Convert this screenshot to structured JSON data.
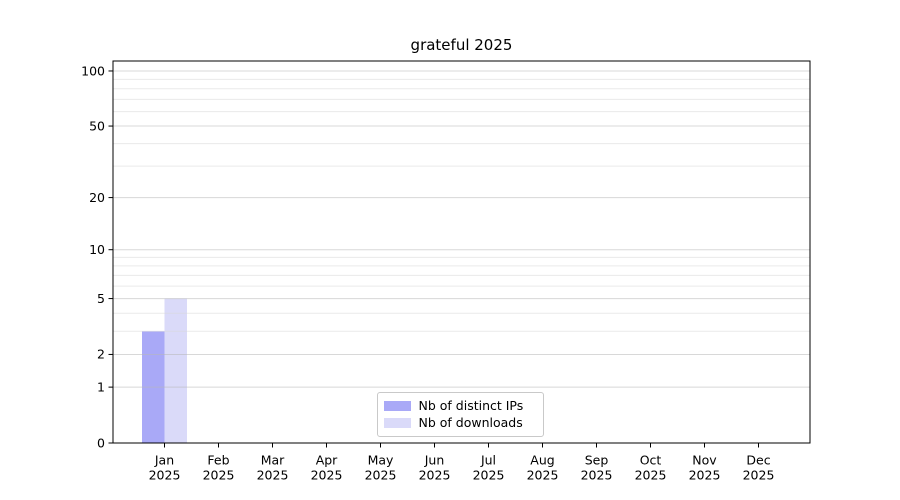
{
  "chart_data": {
    "type": "bar",
    "title": "grateful 2025",
    "months": [
      "Jan",
      "Feb",
      "Mar",
      "Apr",
      "May",
      "Jun",
      "Jul",
      "Aug",
      "Sep",
      "Oct",
      "Nov",
      "Dec"
    ],
    "year": "2025",
    "categories": [
      "Jan 2025",
      "Feb 2025",
      "Mar 2025",
      "Apr 2025",
      "May 2025",
      "Jun 2025",
      "Jul 2025",
      "Aug 2025",
      "Sep 2025",
      "Oct 2025",
      "Nov 2025",
      "Dec 2025"
    ],
    "series": [
      {
        "name": "Nb of distinct IPs",
        "color": "#a9a9f7",
        "values": [
          3,
          0,
          0,
          0,
          0,
          0,
          0,
          0,
          0,
          0,
          0,
          0
        ]
      },
      {
        "name": "Nb of downloads",
        "color": "#dadaf9",
        "values": [
          5,
          0,
          0,
          0,
          0,
          0,
          0,
          0,
          0,
          0,
          0,
          0
        ]
      }
    ],
    "yscale": "log1p",
    "ylim": [
      0,
      113.3
    ],
    "yticks": [
      0,
      1,
      2,
      5,
      10,
      20,
      50,
      100
    ],
    "ytick_labels": [
      "0",
      "1",
      "2",
      "5",
      "10",
      "20",
      "50",
      "100"
    ],
    "grid_minor_values": [
      3,
      4,
      6,
      7,
      8,
      9,
      30,
      40,
      60,
      70,
      80,
      90
    ],
    "legend_position": "lower center",
    "colors": {
      "spine": "#000000",
      "grid_major": "#b8b8b8",
      "grid_minor": "#d8d8d8",
      "text": "#000000",
      "background": "#ffffff"
    }
  }
}
